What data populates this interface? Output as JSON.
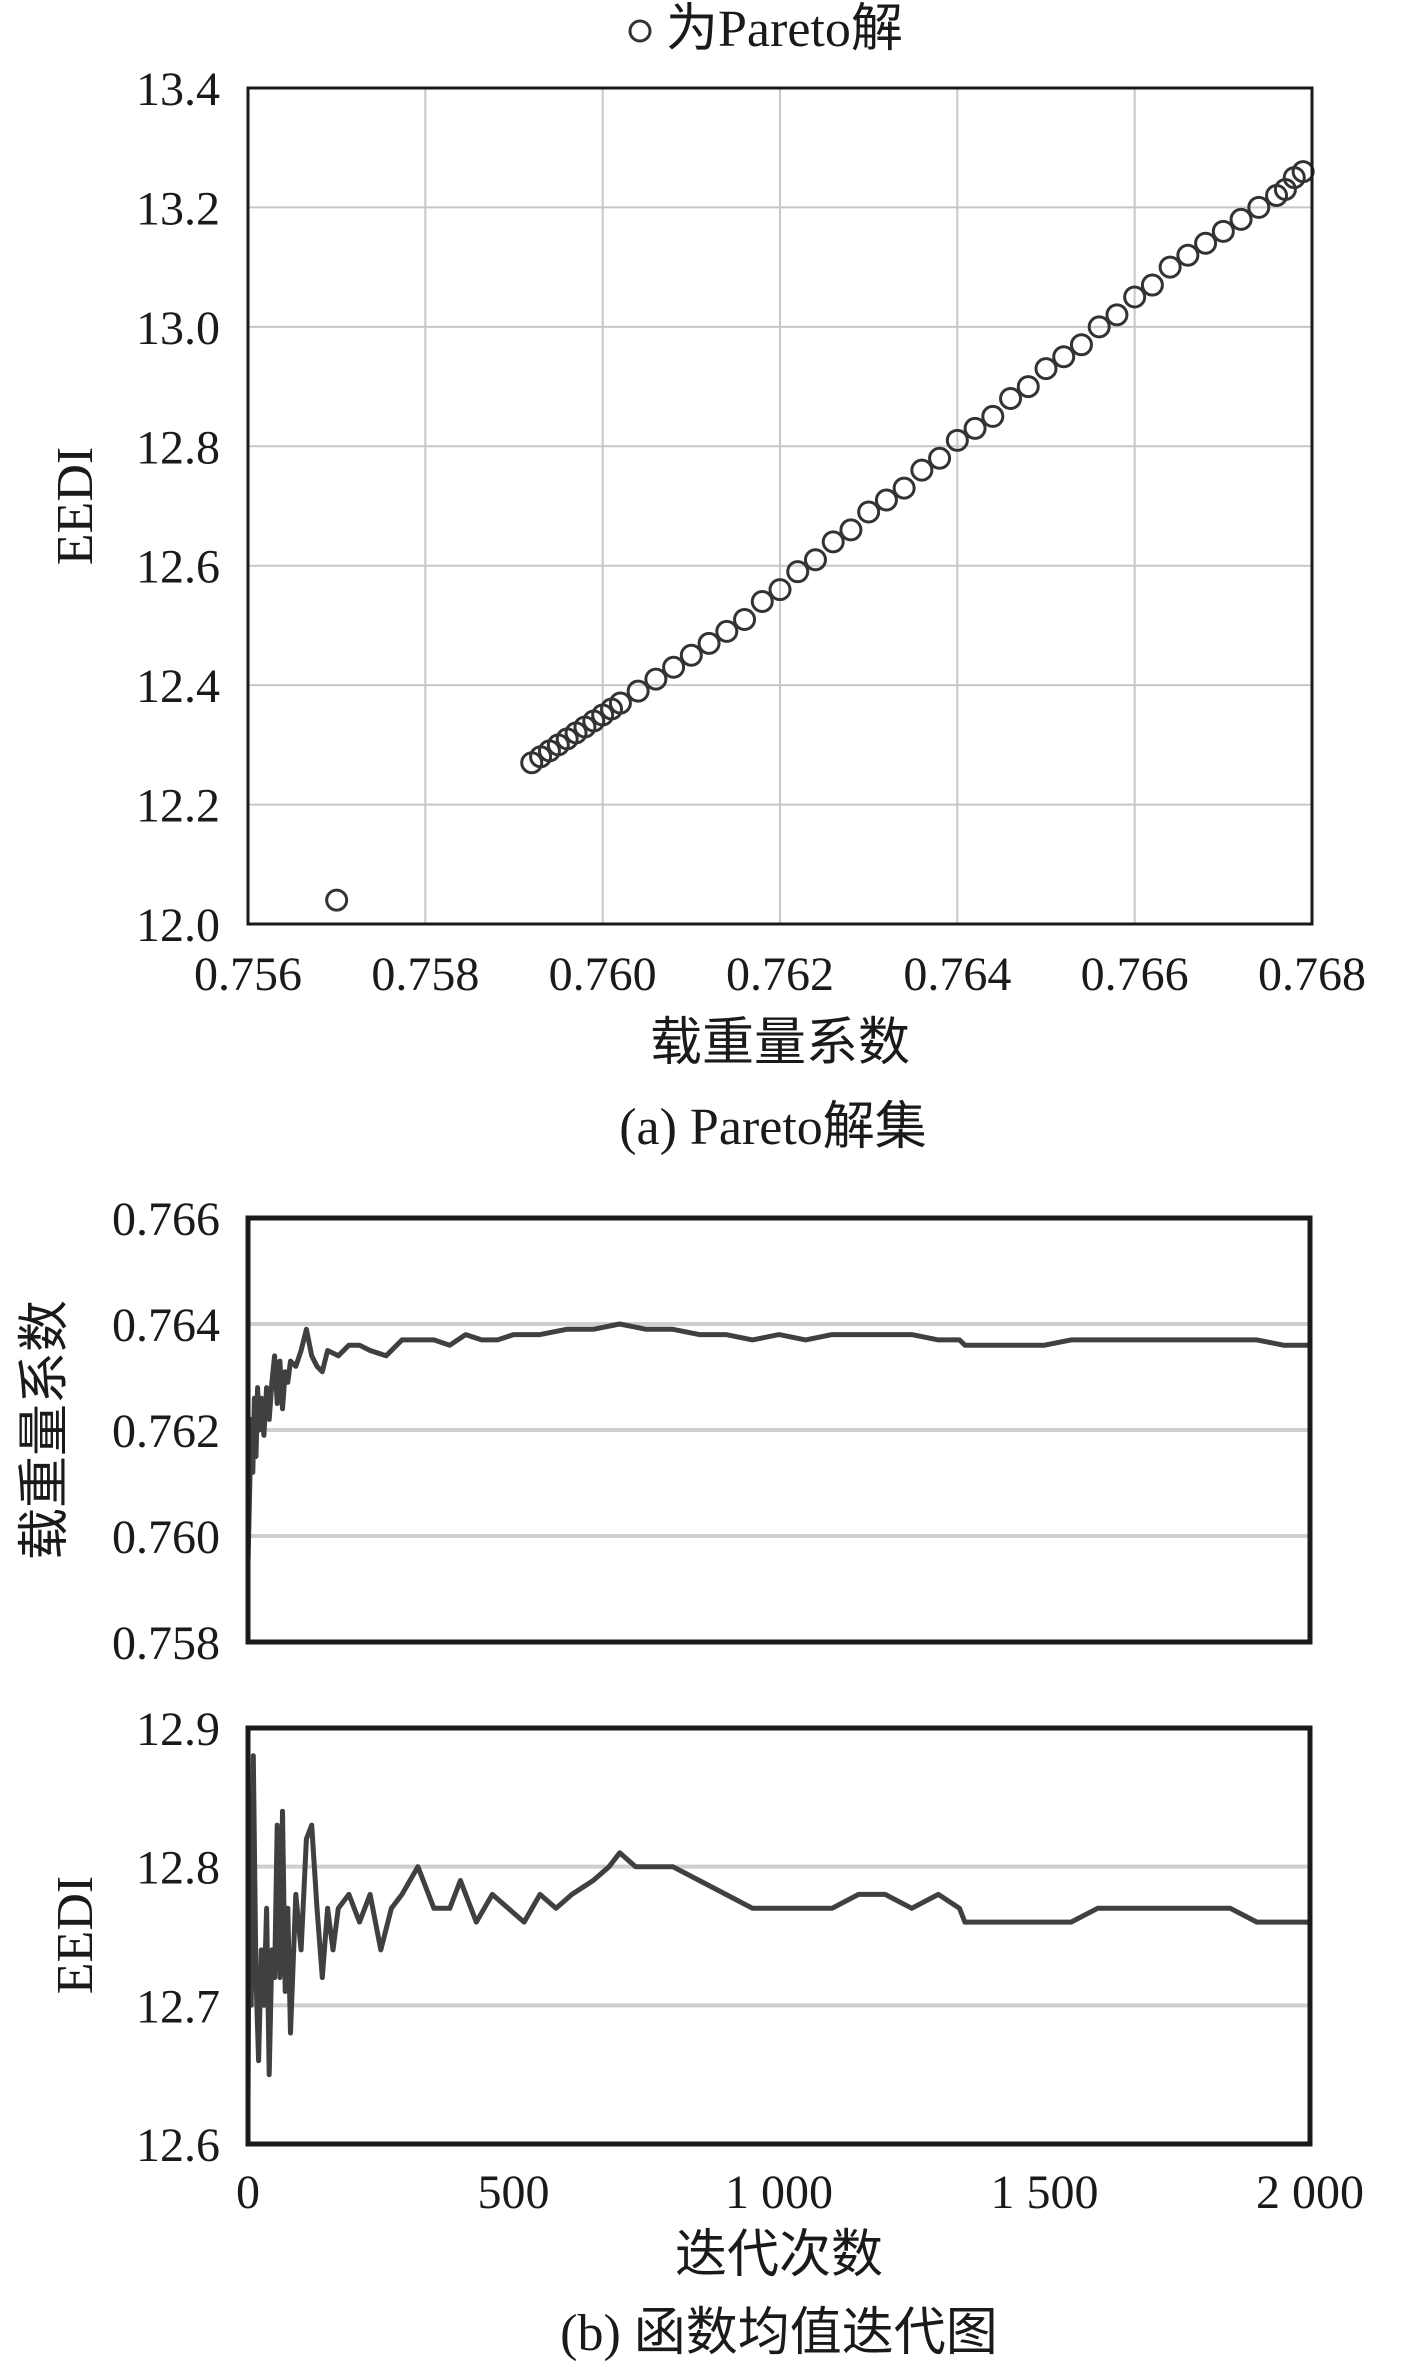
{
  "chart_data": [
    {
      "type": "scatter",
      "legend": {
        "label": "为Pareto解",
        "placement": "top"
      },
      "xlabel": "载重量系数",
      "ylabel": "EEDI",
      "xlim": [
        0.756,
        0.768
      ],
      "ylim": [
        12.0,
        13.4
      ],
      "xticks": [
        "0.756",
        "0.758",
        "0.760",
        "0.762",
        "0.764",
        "0.766",
        "0.768"
      ],
      "yticks": [
        "12.0",
        "12.2",
        "12.4",
        "12.6",
        "12.8",
        "13.0",
        "13.2",
        "13.4"
      ],
      "grid": true,
      "caption": "(a) Pareto解集",
      "points": [
        [
          0.757,
          12.04
        ],
        [
          0.7592,
          12.27
        ],
        [
          0.7593,
          12.28
        ],
        [
          0.7594,
          12.29
        ],
        [
          0.7595,
          12.3
        ],
        [
          0.7596,
          12.31
        ],
        [
          0.7597,
          12.32
        ],
        [
          0.7598,
          12.33
        ],
        [
          0.7599,
          12.34
        ],
        [
          0.76,
          12.35
        ],
        [
          0.7601,
          12.36
        ],
        [
          0.7602,
          12.37
        ],
        [
          0.7604,
          12.39
        ],
        [
          0.7606,
          12.41
        ],
        [
          0.7608,
          12.43
        ],
        [
          0.761,
          12.45
        ],
        [
          0.7612,
          12.47
        ],
        [
          0.7614,
          12.49
        ],
        [
          0.7616,
          12.51
        ],
        [
          0.7618,
          12.54
        ],
        [
          0.762,
          12.56
        ],
        [
          0.7622,
          12.59
        ],
        [
          0.7624,
          12.61
        ],
        [
          0.7626,
          12.64
        ],
        [
          0.7628,
          12.66
        ],
        [
          0.763,
          12.69
        ],
        [
          0.7632,
          12.71
        ],
        [
          0.7634,
          12.73
        ],
        [
          0.7636,
          12.76
        ],
        [
          0.7638,
          12.78
        ],
        [
          0.764,
          12.81
        ],
        [
          0.7642,
          12.83
        ],
        [
          0.7644,
          12.85
        ],
        [
          0.7646,
          12.88
        ],
        [
          0.7648,
          12.9
        ],
        [
          0.765,
          12.93
        ],
        [
          0.7652,
          12.95
        ],
        [
          0.7654,
          12.97
        ],
        [
          0.7656,
          13.0
        ],
        [
          0.7658,
          13.02
        ],
        [
          0.766,
          13.05
        ],
        [
          0.7662,
          13.07
        ],
        [
          0.7664,
          13.1
        ],
        [
          0.7666,
          13.12
        ],
        [
          0.7668,
          13.14
        ],
        [
          0.767,
          13.16
        ],
        [
          0.7672,
          13.18
        ],
        [
          0.7674,
          13.2
        ],
        [
          0.7676,
          13.22
        ],
        [
          0.7677,
          13.23
        ],
        [
          0.7678,
          13.25
        ],
        [
          0.7679,
          13.26
        ]
      ]
    },
    {
      "type": "line",
      "ylabel": "载重量系数",
      "xlim": [
        0,
        2000
      ],
      "ylim": [
        0.758,
        0.766
      ],
      "yticks": [
        "0.758",
        "0.760",
        "0.762",
        "0.764",
        "0.766"
      ],
      "grid": true,
      "series": [
        {
          "x": [
            0,
            3,
            6,
            9,
            12,
            15,
            18,
            21,
            25,
            30,
            35,
            40,
            45,
            50,
            55,
            60,
            65,
            70,
            75,
            80,
            90,
            100,
            110,
            120,
            130,
            140,
            150,
            170,
            190,
            210,
            230,
            260,
            290,
            320,
            350,
            380,
            410,
            440,
            470,
            500,
            550,
            600,
            650,
            700,
            750,
            800,
            850,
            900,
            950,
            1000,
            1050,
            1100,
            1150,
            1200,
            1250,
            1300,
            1340,
            1350,
            1400,
            1450,
            1500,
            1550,
            1600,
            1650,
            1700,
            1750,
            1800,
            1850,
            1900,
            1950,
            2000
          ],
          "y": [
            0.7595,
            0.7608,
            0.7622,
            0.7612,
            0.7626,
            0.7615,
            0.7628,
            0.762,
            0.7626,
            0.7619,
            0.7628,
            0.7622,
            0.7629,
            0.7634,
            0.7625,
            0.7633,
            0.7624,
            0.7631,
            0.7629,
            0.7633,
            0.7632,
            0.7635,
            0.7639,
            0.7634,
            0.7632,
            0.7631,
            0.7635,
            0.7634,
            0.7636,
            0.7636,
            0.7635,
            0.7634,
            0.7637,
            0.7637,
            0.7637,
            0.7636,
            0.7638,
            0.7637,
            0.7637,
            0.7638,
            0.7638,
            0.7639,
            0.7639,
            0.764,
            0.7639,
            0.7639,
            0.7638,
            0.7638,
            0.7637,
            0.7638,
            0.7637,
            0.7638,
            0.7638,
            0.7638,
            0.7638,
            0.7637,
            0.7637,
            0.7636,
            0.7636,
            0.7636,
            0.7636,
            0.7637,
            0.7637,
            0.7637,
            0.7637,
            0.7637,
            0.7637,
            0.7637,
            0.7637,
            0.7636,
            0.7636
          ]
        }
      ]
    },
    {
      "type": "line",
      "xlabel": "迭代次数",
      "ylabel": "EEDI",
      "xlim": [
        0,
        2000
      ],
      "ylim": [
        12.6,
        12.9
      ],
      "xticks": [
        "0",
        "500",
        "1 000",
        "1 500",
        "2 000"
      ],
      "yticks": [
        "12.6",
        "12.7",
        "12.8",
        "12.9"
      ],
      "grid": true,
      "caption": "(b) 函数均值迭代图",
      "series": [
        {
          "x": [
            0,
            3,
            6,
            10,
            15,
            20,
            25,
            30,
            35,
            40,
            45,
            50,
            55,
            60,
            65,
            70,
            75,
            80,
            90,
            100,
            110,
            120,
            130,
            140,
            150,
            160,
            170,
            190,
            210,
            230,
            250,
            270,
            290,
            320,
            350,
            380,
            400,
            430,
            460,
            490,
            520,
            550,
            580,
            610,
            650,
            680,
            700,
            730,
            760,
            800,
            850,
            900,
            950,
            1000,
            1050,
            1100,
            1150,
            1200,
            1250,
            1300,
            1340,
            1350,
            1400,
            1450,
            1500,
            1550,
            1600,
            1650,
            1700,
            1750,
            1800,
            1850,
            1900,
            1950,
            2000
          ],
          "y": [
            12.63,
            12.85,
            12.7,
            12.88,
            12.72,
            12.66,
            12.74,
            12.7,
            12.77,
            12.65,
            12.74,
            12.72,
            12.83,
            12.72,
            12.84,
            12.71,
            12.77,
            12.68,
            12.78,
            12.74,
            12.82,
            12.83,
            12.77,
            12.72,
            12.77,
            12.74,
            12.77,
            12.78,
            12.76,
            12.78,
            12.74,
            12.77,
            12.78,
            12.8,
            12.77,
            12.77,
            12.79,
            12.76,
            12.78,
            12.77,
            12.76,
            12.78,
            12.77,
            12.78,
            12.79,
            12.8,
            12.81,
            12.8,
            12.8,
            12.8,
            12.79,
            12.78,
            12.77,
            12.77,
            12.77,
            12.77,
            12.78,
            12.78,
            12.77,
            12.78,
            12.77,
            12.76,
            12.76,
            12.76,
            12.76,
            12.76,
            12.77,
            12.77,
            12.77,
            12.77,
            12.77,
            12.77,
            12.76,
            12.76,
            12.76
          ]
        }
      ]
    }
  ]
}
